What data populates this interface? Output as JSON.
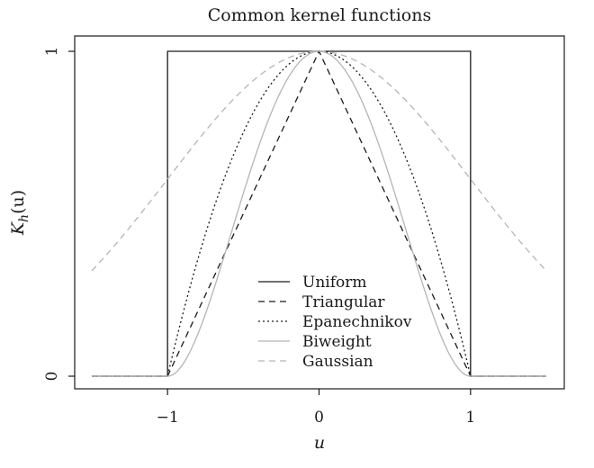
{
  "chart_data": {
    "type": "line",
    "title": "Common kernel functions",
    "xlabel": "u",
    "ylabel_main": "K",
    "ylabel_sub": "h",
    "ylabel_arg": "(u)",
    "xlim": [
      -1.5,
      1.5
    ],
    "ylim": [
      0,
      1
    ],
    "x_ticks": [
      -1,
      0,
      1
    ],
    "x_tick_labels": [
      "−1",
      "0",
      "1"
    ],
    "y_ticks": [
      0,
      1
    ],
    "y_tick_labels": [
      "0",
      "1"
    ],
    "grid": false,
    "legend_position": "bottom-center",
    "series": [
      {
        "name": "Uniform",
        "kernel": "uniform",
        "color": "#1a1a1a",
        "dash": "solid"
      },
      {
        "name": "Triangular",
        "kernel": "triangular",
        "color": "#1a1a1a",
        "dash": "dashed"
      },
      {
        "name": "Epanechnikov",
        "kernel": "epanechnikov",
        "color": "#1a1a1a",
        "dash": "dotted"
      },
      {
        "name": "Biweight",
        "kernel": "biweight",
        "color": "#b5b5b5",
        "dash": "solid"
      },
      {
        "name": "Gaussian",
        "kernel": "gaussian",
        "color": "#b5b5b5",
        "dash": "dashed"
      }
    ]
  }
}
